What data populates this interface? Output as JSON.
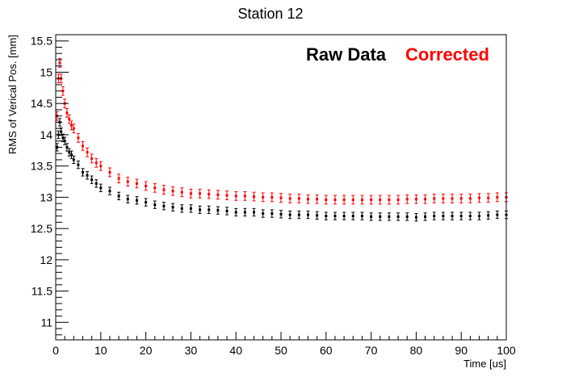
{
  "chart_data": {
    "type": "scatter",
    "title": "Station 12",
    "xlabel": "Time [us]",
    "ylabel": "RMS of Verical Pos. [mm]",
    "xlim": [
      0,
      100
    ],
    "ylim": [
      10.72,
      15.6
    ],
    "x_ticks": [
      0,
      10,
      20,
      30,
      40,
      50,
      60,
      70,
      80,
      90,
      100
    ],
    "y_ticks": [
      11,
      11.5,
      12,
      12.5,
      13,
      13.5,
      14,
      14.5,
      15,
      15.5
    ],
    "legend": {
      "placement": "top-right"
    },
    "grid": false,
    "series": [
      {
        "name": "Raw Data",
        "color": "#000000",
        "x": [
          0.3,
          0.6,
          0.9,
          1.2,
          1.6,
          2,
          2.5,
          3,
          3.5,
          4,
          5,
          6,
          7,
          8,
          9,
          10,
          12,
          14,
          16,
          18,
          20,
          22,
          24,
          26,
          28,
          30,
          32,
          34,
          36,
          38,
          40,
          42,
          44,
          46,
          48,
          50,
          52,
          54,
          56,
          58,
          60,
          62,
          64,
          66,
          68,
          70,
          72,
          74,
          76,
          78,
          80,
          82,
          84,
          86,
          88,
          90,
          92,
          94,
          96,
          98,
          100
        ],
        "y": [
          13.8,
          14.0,
          14.2,
          14.05,
          13.95,
          13.9,
          13.8,
          13.72,
          13.68,
          13.6,
          13.52,
          13.4,
          13.35,
          13.28,
          13.22,
          13.15,
          13.1,
          13.02,
          12.97,
          12.95,
          12.92,
          12.88,
          12.86,
          12.84,
          12.82,
          12.82,
          12.8,
          12.8,
          12.79,
          12.78,
          12.76,
          12.76,
          12.76,
          12.74,
          12.74,
          12.73,
          12.72,
          12.72,
          12.72,
          12.71,
          12.7,
          12.7,
          12.7,
          12.7,
          12.7,
          12.69,
          12.69,
          12.69,
          12.69,
          12.69,
          12.68,
          12.69,
          12.7,
          12.7,
          12.7,
          12.7,
          12.7,
          12.7,
          12.71,
          12.72,
          12.72
        ],
        "err": 0.06
      },
      {
        "name": "Corrected",
        "color": "#ff0000",
        "x": [
          0.3,
          0.6,
          0.9,
          1.2,
          1.6,
          2,
          2.5,
          3,
          3.5,
          4,
          5,
          6,
          7,
          8,
          9,
          10,
          12,
          14,
          16,
          18,
          20,
          22,
          24,
          26,
          28,
          30,
          32,
          34,
          36,
          38,
          40,
          42,
          44,
          46,
          48,
          50,
          52,
          54,
          56,
          58,
          60,
          62,
          64,
          66,
          68,
          70,
          72,
          74,
          76,
          78,
          80,
          82,
          84,
          86,
          88,
          90,
          92,
          94,
          96,
          98,
          100
        ],
        "y": [
          14.3,
          14.9,
          15.15,
          14.9,
          14.7,
          14.5,
          14.35,
          14.25,
          14.15,
          14.1,
          13.95,
          13.82,
          13.72,
          13.62,
          13.55,
          13.5,
          13.4,
          13.3,
          13.25,
          13.22,
          13.18,
          13.15,
          13.12,
          13.1,
          13.08,
          13.06,
          13.06,
          13.05,
          13.04,
          13.03,
          13.02,
          13.02,
          13.01,
          13.0,
          13.0,
          12.99,
          12.98,
          12.98,
          12.97,
          12.97,
          12.96,
          12.96,
          12.96,
          12.96,
          12.96,
          12.96,
          12.96,
          12.96,
          12.96,
          12.97,
          12.97,
          12.97,
          12.98,
          12.98,
          12.98,
          12.98,
          12.98,
          12.99,
          12.99,
          13.0,
          13.0
        ],
        "err": 0.07
      }
    ]
  }
}
